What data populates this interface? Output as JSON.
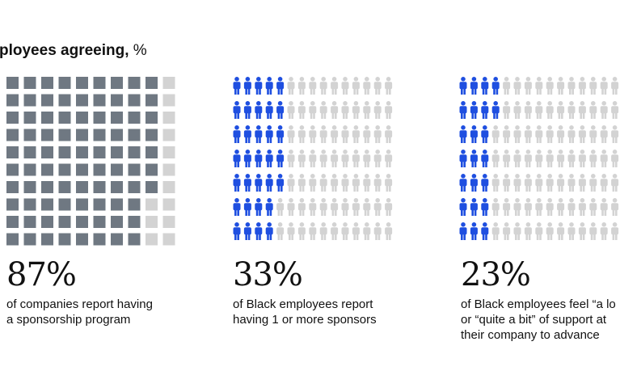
{
  "heading": {
    "bold_text": "ployees agreeing,",
    "unit_text": " %"
  },
  "colors": {
    "squares_on": "#6f7882",
    "squares_off": "#d3d3d3",
    "people_on": "#1f4fe0",
    "people_off": "#d3d3d3"
  },
  "chart_data": [
    {
      "type": "waffle",
      "marker": "square",
      "grid": {
        "columns": 10,
        "rows": 10
      },
      "value": 87,
      "value_label": "87%",
      "caption": [
        "of companies report having",
        "a sponsorship program"
      ],
      "color_on": "#6f7882",
      "color_off": "#d3d3d3"
    },
    {
      "type": "waffle",
      "marker": "person",
      "grid": {
        "columns": 15,
        "rows": 7
      },
      "value": 33,
      "value_label": "33%",
      "caption": [
        "of Black employees report",
        "having 1 or more sponsors"
      ],
      "color_on": "#1f4fe0",
      "color_off": "#d3d3d3"
    },
    {
      "type": "waffle",
      "marker": "person",
      "grid": {
        "columns": 15,
        "rows": 7
      },
      "value": 23,
      "value_label": "23%",
      "caption": [
        "of Black employees feel “a lo",
        "or “quite a bit” of support at",
        "their company to advance"
      ],
      "color_on": "#1f4fe0",
      "color_off": "#d3d3d3"
    }
  ]
}
